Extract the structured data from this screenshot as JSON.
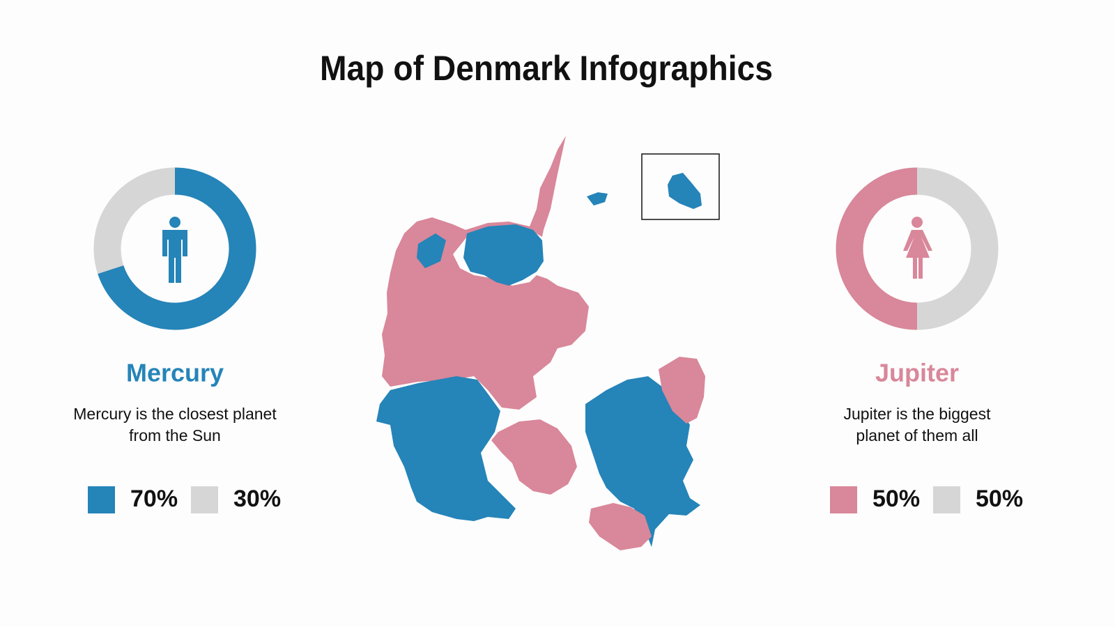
{
  "title": "Map of Denmark Infographics",
  "panels": [
    {
      "name": "Mercury",
      "lines": [
        "Mercury is the closest planet",
        "from the Sun"
      ],
      "color": "#2584b8",
      "values": [
        70,
        30
      ],
      "value_labels": [
        "70%",
        "30%"
      ],
      "colors": [
        "#2584b8",
        "#d6d6d6"
      ],
      "direction": "clockwise"
    },
    {
      "name": "Jupiter",
      "lines": [
        "Jupiter is the biggest",
        "planet of them all"
      ],
      "color": "#d9879a",
      "values": [
        50,
        50
      ],
      "value_labels": [
        "50%",
        "50%"
      ],
      "colors": [
        "#d9879a",
        "#d6d6d6"
      ],
      "direction": "counterclockwise"
    }
  ]
}
